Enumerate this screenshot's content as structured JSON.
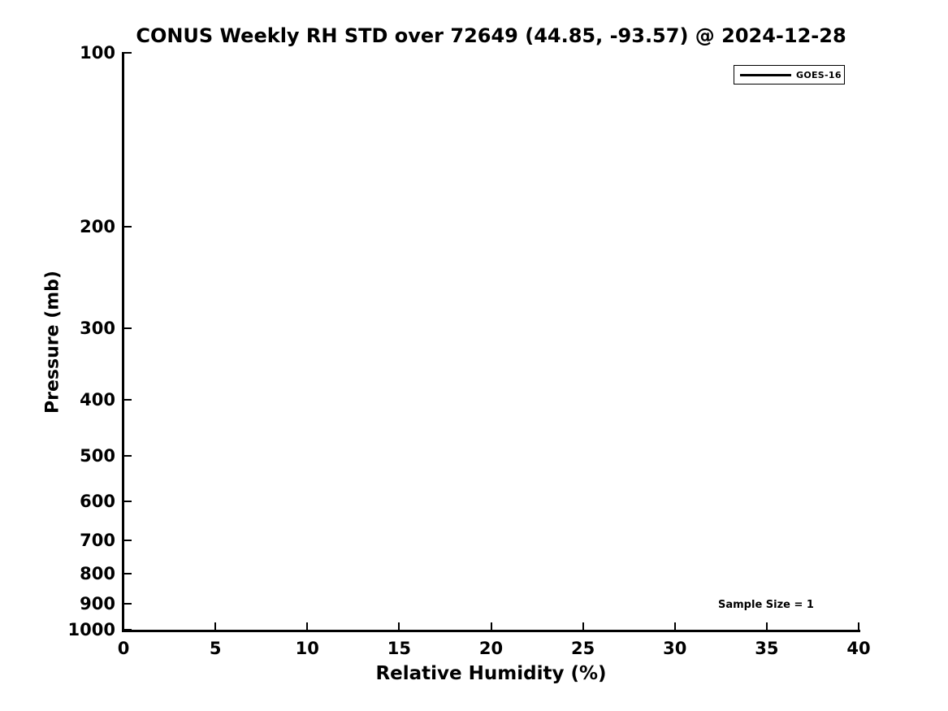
{
  "chart_data": {
    "type": "line",
    "title": "CONUS Weekly RH STD over 72649 (44.85, -93.57) @ 2024-12-28",
    "xlabel": "Relative Humidity (%)",
    "ylabel": "Pressure (mb)",
    "xlim": [
      0,
      40
    ],
    "ylim": [
      100,
      1000
    ],
    "y_scale": "log10",
    "y_axis_inverted": true,
    "x_ticks": [
      0,
      5,
      10,
      15,
      20,
      25,
      30,
      35,
      40
    ],
    "y_ticks": [
      100,
      200,
      300,
      400,
      500,
      600,
      700,
      800,
      900,
      1000
    ],
    "grid": false,
    "tick_direction": "in",
    "legend": {
      "position": "top-right",
      "entries": [
        {
          "label": "GOES-16",
          "color": "#000000",
          "line_width": 3
        }
      ]
    },
    "series": [
      {
        "name": "GOES-16",
        "color": "#000000",
        "points": []
      }
    ],
    "annotations": [
      {
        "text": "Sample Size = 1",
        "x": 35,
        "y": 900
      }
    ]
  },
  "colors": {
    "foreground": "#000000",
    "background": "#ffffff"
  }
}
